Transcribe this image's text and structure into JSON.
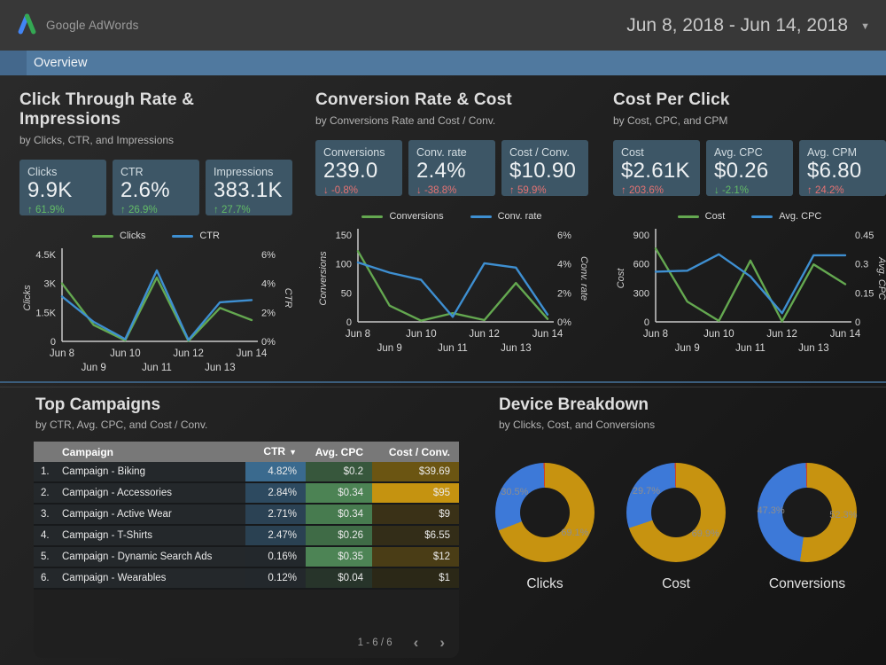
{
  "header": {
    "logo_text": "Google AdWords",
    "date_range": "Jun 8, 2018 - Jun 14, 2018",
    "caret": "▼"
  },
  "nav": {
    "tab": "Overview"
  },
  "colors": {
    "accent_blue": "#50799f",
    "card_bg": "#3d5666",
    "line_green": "#64a850",
    "line_blue": "#3e8fd1",
    "donut_gold": "#c79310",
    "donut_blue": "#3d79d8",
    "donut_red": "#cc4125",
    "delta_green": "#62bb66",
    "delta_red": "#e57272"
  },
  "sections": [
    {
      "title": "Click Through Rate & Impressions",
      "subtitle": "by Clicks, CTR, and Impressions",
      "scorecards": [
        {
          "label": "Clicks",
          "value": "9.9K",
          "delta": "61.9%",
          "direction": "up",
          "sentiment": "green"
        },
        {
          "label": "CTR",
          "value": "2.6%",
          "delta": "26.9%",
          "direction": "up",
          "sentiment": "green"
        },
        {
          "label": "Impressions",
          "value": "383.1K",
          "delta": "27.7%",
          "direction": "up",
          "sentiment": "green"
        }
      ]
    },
    {
      "title": "Conversion Rate & Cost",
      "subtitle": "by Conversions Rate and Cost / Conv.",
      "scorecards": [
        {
          "label": "Conversions",
          "value": "239.0",
          "delta": "-0.8%",
          "direction": "down",
          "sentiment": "red"
        },
        {
          "label": "Conv. rate",
          "value": "2.4%",
          "delta": "-38.8%",
          "direction": "down",
          "sentiment": "red"
        },
        {
          "label": "Cost / Conv.",
          "value": "$10.90",
          "delta": "59.9%",
          "direction": "up",
          "sentiment": "red"
        }
      ]
    },
    {
      "title": "Cost Per Click",
      "subtitle": "by Cost, CPC, and CPM",
      "scorecards": [
        {
          "label": "Cost",
          "value": "$2.61K",
          "delta": "203.6%",
          "direction": "up",
          "sentiment": "red"
        },
        {
          "label": "Avg. CPC",
          "value": "$0.26",
          "delta": "-2.1%",
          "direction": "down",
          "sentiment": "green"
        },
        {
          "label": "Avg. CPM",
          "value": "$6.80",
          "delta": "24.2%",
          "direction": "up",
          "sentiment": "red"
        }
      ]
    }
  ],
  "chart_data": [
    {
      "type": "line",
      "x": [
        "Jun 8",
        "Jun 9",
        "Jun 10",
        "Jun 11",
        "Jun 12",
        "Jun 13",
        "Jun 14"
      ],
      "series": [
        {
          "name": "Clicks",
          "color": "#64a850",
          "axis": "left",
          "values": [
            3000,
            850,
            50,
            3300,
            20,
            1730,
            1100
          ]
        },
        {
          "name": "CTR",
          "color": "#3e8fd1",
          "axis": "right",
          "values": [
            3.1,
            1.35,
            0.15,
            4.9,
            0.1,
            2.7,
            2.85
          ]
        }
      ],
      "left_axis": {
        "label": "Clicks",
        "ticks": [
          "0",
          "1.5K",
          "3K",
          "4.5K"
        ],
        "max": 4500
      },
      "right_axis": {
        "label": "CTR",
        "ticks": [
          "0%",
          "2%",
          "4%",
          "6%"
        ],
        "max": 6
      },
      "grid": false,
      "legend_position": "top"
    },
    {
      "type": "line",
      "x": [
        "Jun 8",
        "Jun 9",
        "Jun 10",
        "Jun 11",
        "Jun 12",
        "Jun 13",
        "Jun 14"
      ],
      "series": [
        {
          "name": "Conversions",
          "color": "#64a850",
          "axis": "left",
          "values": [
            122,
            28,
            2,
            15,
            3,
            67,
            5
          ]
        },
        {
          "name": "Conv. rate",
          "color": "#3e8fd1",
          "axis": "right",
          "values": [
            4.1,
            3.4,
            2.9,
            0.35,
            4.05,
            3.75,
            0.5
          ]
        }
      ],
      "left_axis": {
        "label": "Conversions",
        "ticks": [
          "0",
          "50",
          "100",
          "150"
        ],
        "max": 150
      },
      "right_axis": {
        "label": "Conv. rate",
        "ticks": [
          "0%",
          "2%",
          "4%",
          "6%"
        ],
        "max": 6
      },
      "grid": false,
      "legend_position": "top"
    },
    {
      "type": "line",
      "x": [
        "Jun 8",
        "Jun 9",
        "Jun 10",
        "Jun 11",
        "Jun 12",
        "Jun 13",
        "Jun 14"
      ],
      "series": [
        {
          "name": "Cost",
          "color": "#64a850",
          "axis": "left",
          "values": [
            760,
            210,
            10,
            635,
            5,
            595,
            390
          ]
        },
        {
          "name": "Avg. CPC",
          "color": "#3e8fd1",
          "axis": "right",
          "values": [
            0.26,
            0.265,
            0.35,
            0.235,
            0.045,
            0.345,
            0.345
          ]
        }
      ],
      "left_axis": {
        "label": "Cost",
        "ticks": [
          "0",
          "300",
          "600",
          "900"
        ],
        "max": 900
      },
      "right_axis": {
        "label": "Avg. CPC",
        "ticks": [
          "0",
          "0.15",
          "0.3",
          "0.45"
        ],
        "max": 0.45
      },
      "grid": false,
      "legend_position": "top"
    },
    {
      "type": "pie",
      "name": "Clicks",
      "slices": [
        {
          "value": 69.1,
          "color": "#c79310",
          "label": "69.1%"
        },
        {
          "value": 30.5,
          "color": "#3d79d8",
          "label": "30.5%"
        },
        {
          "value": 0.4,
          "color": "#cc4125",
          "label": ""
        }
      ]
    },
    {
      "type": "pie",
      "name": "Cost",
      "slices": [
        {
          "value": 69.9,
          "color": "#c79310",
          "label": "69.9%"
        },
        {
          "value": 29.7,
          "color": "#3d79d8",
          "label": "29.7%"
        },
        {
          "value": 0.4,
          "color": "#cc4125",
          "label": ""
        }
      ]
    },
    {
      "type": "pie",
      "name": "Conversions",
      "slices": [
        {
          "value": 52.3,
          "color": "#c79310",
          "label": "52.3%"
        },
        {
          "value": 47.3,
          "color": "#3d79d8",
          "label": "47.3%"
        },
        {
          "value": 0.4,
          "color": "#cc4125",
          "label": ""
        }
      ]
    }
  ],
  "table": {
    "title": "Top Campaigns",
    "subtitle": "by CTR, Avg. CPC, and Cost / Conv.",
    "columns": [
      "Campaign",
      "CTR",
      "Avg. CPC",
      "Cost / Conv."
    ],
    "sort_arrow": "▼",
    "rows": [
      {
        "index": "1.",
        "campaign": "Campaign - Biking",
        "ctr": "4.82%",
        "cpc": "$0.2",
        "cost_conv": "$39.69",
        "ctr_bg": "#3a6a8e",
        "cpc_bg": "#37573c",
        "cc_bg": "#6b5512"
      },
      {
        "index": "2.",
        "campaign": "Campaign - Accessories",
        "ctr": "2.84%",
        "cpc": "$0.34",
        "cost_conv": "$95",
        "ctr_bg": "#2d4a60",
        "cpc_bg": "#4c8354",
        "cc_bg": "#c59310"
      },
      {
        "index": "3.",
        "campaign": "Campaign - Active Wear",
        "ctr": "2.71%",
        "cpc": "$0.34",
        "cost_conv": "$9",
        "ctr_bg": "#2b4254",
        "cpc_bg": "#477b4f",
        "cc_bg": "#3a3117"
      },
      {
        "index": "4.",
        "campaign": "Campaign - T-Shirts",
        "ctr": "2.47%",
        "cpc": "$0.26",
        "cost_conv": "$6.55",
        "ctr_bg": "#2a4152",
        "cpc_bg": "#3f6b46",
        "cc_bg": "#332d18"
      },
      {
        "index": "5.",
        "campaign": "Campaign - Dynamic Search Ads",
        "ctr": "0.16%",
        "cpc": "$0.35",
        "cost_conv": "$12",
        "ctr_bg": "#23282c",
        "cpc_bg": "#4d8455",
        "cc_bg": "#4a3d16"
      },
      {
        "index": "6.",
        "campaign": "Campaign - Wearables",
        "ctr": "0.12%",
        "cpc": "$0.04",
        "cost_conv": "$1",
        "ctr_bg": "#23282c",
        "cpc_bg": "#27342a",
        "cc_bg": "#2b2817"
      }
    ],
    "pagination": "1 - 6 / 6",
    "prev": "‹",
    "next": "›"
  },
  "devices": {
    "title": "Device Breakdown",
    "subtitle": "by Clicks, Cost, and Conversions"
  }
}
